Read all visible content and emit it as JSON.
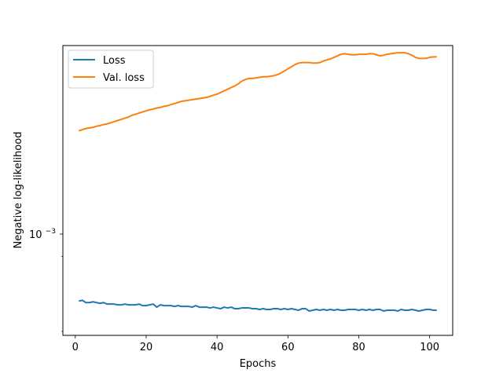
{
  "chart_data": {
    "type": "line",
    "title": "",
    "xlabel": "Epochs",
    "ylabel": "Negative log-likelihood",
    "yscale": "log",
    "xlim": [
      -3.5,
      106.5
    ],
    "ylim": [
      0.000795,
      0.001253
    ],
    "xticks": [
      0,
      20,
      40,
      60,
      80,
      100
    ],
    "xtick_labels": [
      "0",
      "20",
      "40",
      "60",
      "80",
      "100"
    ],
    "ytick_major": {
      "value": 0.001,
      "base": "10",
      "exponent": "−3"
    },
    "legend": {
      "placement": "top-left"
    },
    "grid": false,
    "series": [
      {
        "name": "Loss",
        "color": "#1f77b4",
        "x": [
          1,
          2,
          3,
          4,
          5,
          6,
          7,
          8,
          9,
          10,
          11,
          12,
          13,
          14,
          15,
          16,
          17,
          18,
          19,
          20,
          21,
          22,
          23,
          24,
          25,
          26,
          27,
          28,
          29,
          30,
          31,
          32,
          33,
          34,
          35,
          36,
          37,
          38,
          39,
          40,
          41,
          42,
          43,
          44,
          45,
          46,
          47,
          48,
          49,
          50,
          51,
          52,
          53,
          54,
          55,
          56,
          57,
          58,
          59,
          60,
          61,
          62,
          63,
          64,
          65,
          66,
          67,
          68,
          69,
          70,
          71,
          72,
          73,
          74,
          75,
          76,
          77,
          78,
          79,
          80,
          81,
          82,
          83,
          84,
          85,
          86,
          87,
          88,
          89,
          90,
          91,
          92,
          93,
          94,
          95,
          96,
          97,
          98,
          99,
          100,
          101,
          102
        ],
        "y": [
          0.000839,
          0.00084,
          0.000837,
          0.000837,
          0.000838,
          0.000837,
          0.000836,
          0.000837,
          0.000835,
          0.000835,
          0.000835,
          0.000834,
          0.000834,
          0.000835,
          0.000834,
          0.000834,
          0.000834,
          0.000835,
          0.000833,
          0.000833,
          0.000834,
          0.000835,
          0.000831,
          0.000834,
          0.000833,
          0.000833,
          0.000833,
          0.000832,
          0.000833,
          0.000832,
          0.000832,
          0.000832,
          0.000831,
          0.000833,
          0.000831,
          0.000831,
          0.000831,
          0.00083,
          0.000831,
          0.00083,
          0.000829,
          0.000831,
          0.00083,
          0.000831,
          0.000829,
          0.000829,
          0.00083,
          0.00083,
          0.00083,
          0.000829,
          0.000829,
          0.000828,
          0.000829,
          0.000828,
          0.000828,
          0.000829,
          0.000829,
          0.000828,
          0.000829,
          0.000828,
          0.000829,
          0.000828,
          0.000827,
          0.000829,
          0.000829,
          0.000826,
          0.000827,
          0.000828,
          0.000827,
          0.000828,
          0.000827,
          0.000828,
          0.000827,
          0.000828,
          0.000827,
          0.000827,
          0.000828,
          0.000828,
          0.000828,
          0.000827,
          0.000828,
          0.000827,
          0.000828,
          0.000827,
          0.000828,
          0.000828,
          0.000826,
          0.000827,
          0.000827,
          0.000827,
          0.000826,
          0.000828,
          0.000827,
          0.000827,
          0.000828,
          0.000827,
          0.000826,
          0.000827,
          0.000828,
          0.000828,
          0.000827,
          0.000827
        ]
      },
      {
        "name": "Val. loss",
        "color": "#ff7f0e",
        "x": [
          1,
          2,
          3,
          4,
          5,
          6,
          7,
          8,
          9,
          10,
          11,
          12,
          13,
          14,
          15,
          16,
          17,
          18,
          19,
          20,
          21,
          22,
          23,
          24,
          25,
          26,
          27,
          28,
          29,
          30,
          31,
          32,
          33,
          34,
          35,
          36,
          37,
          38,
          39,
          40,
          41,
          42,
          43,
          44,
          45,
          46,
          47,
          48,
          49,
          50,
          51,
          52,
          53,
          54,
          55,
          56,
          57,
          58,
          59,
          60,
          61,
          62,
          63,
          64,
          65,
          66,
          67,
          68,
          69,
          70,
          71,
          72,
          73,
          74,
          75,
          76,
          77,
          78,
          79,
          80,
          81,
          82,
          83,
          84,
          85,
          86,
          87,
          88,
          89,
          90,
          91,
          92,
          93,
          94,
          95,
          96,
          97,
          98,
          99,
          100,
          101,
          102
        ],
        "y": [
          0.001096,
          0.001098,
          0.0011,
          0.001101,
          0.001102,
          0.001104,
          0.001105,
          0.001107,
          0.001108,
          0.00111,
          0.001112,
          0.001114,
          0.001116,
          0.001118,
          0.00112,
          0.001123,
          0.001125,
          0.001127,
          0.001129,
          0.001131,
          0.001133,
          0.001134,
          0.001136,
          0.001137,
          0.001139,
          0.00114,
          0.001142,
          0.001144,
          0.001146,
          0.001148,
          0.001149,
          0.00115,
          0.001151,
          0.001152,
          0.001153,
          0.001154,
          0.001155,
          0.001157,
          0.001159,
          0.001161,
          0.001164,
          0.001167,
          0.00117,
          0.001173,
          0.001176,
          0.00118,
          0.001185,
          0.001188,
          0.00119,
          0.00119,
          0.001191,
          0.001192,
          0.001193,
          0.001193,
          0.001194,
          0.001195,
          0.001197,
          0.0012,
          0.001204,
          0.001208,
          0.001212,
          0.001216,
          0.001219,
          0.00122,
          0.00122,
          0.00122,
          0.001219,
          0.001219,
          0.00122,
          0.001223,
          0.001225,
          0.001227,
          0.00123,
          0.001233,
          0.001236,
          0.001237,
          0.001236,
          0.001235,
          0.001235,
          0.001236,
          0.001236,
          0.001236,
          0.001237,
          0.001237,
          0.001235,
          0.001233,
          0.001234,
          0.001236,
          0.001237,
          0.001238,
          0.001239,
          0.001239,
          0.001239,
          0.001237,
          0.001234,
          0.00123,
          0.001228,
          0.001228,
          0.001228,
          0.00123,
          0.001231,
          0.001231
        ]
      }
    ]
  }
}
